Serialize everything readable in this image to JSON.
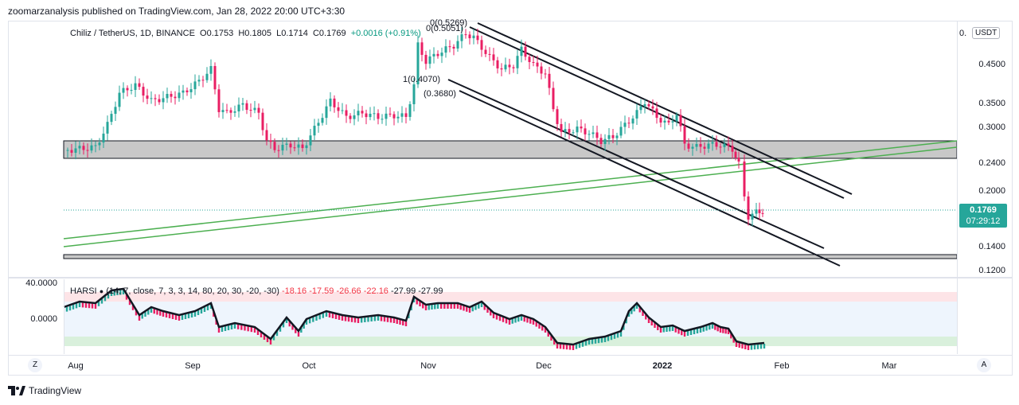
{
  "header": {
    "published": "zoomarzanalysis published on TradingView.com, Jan 28, 2022 20:00 UTC+3:30"
  },
  "legend": {
    "symbol": "Chiliz / TetherUS, 1D, BINANCE",
    "open": "O0.1753",
    "high": "H0.1805",
    "low": "L0.1714",
    "close": "C0.1769",
    "change": "+0.0016 (+0.91%)"
  },
  "osc_legend": {
    "name": "HARSI",
    "params": "(14, 7, close, 7, 3, 3, 14, 80, 20, 30, -20, -30)",
    "values": [
      "-18.16",
      "-17.59",
      "-26.66",
      "-22.16",
      "-27.99",
      "-27.99"
    ]
  },
  "price_axis": {
    "currency": "USDT",
    "ticks": [
      "0.",
      "0.4500",
      "0.3500",
      "0.3000",
      "0.2400",
      "0.2000",
      "0.1400",
      "0.1200"
    ]
  },
  "price_badge": {
    "price": "0.1769",
    "countdown": "07:29:12"
  },
  "osc_axis": {
    "ticks": [
      "40.0000",
      "0.0000"
    ]
  },
  "time_axis": {
    "ticks": [
      "Aug",
      "Sep",
      "Oct",
      "Nov",
      "Dec",
      "2022",
      "Feb",
      "Mar"
    ]
  },
  "fib_labels": [
    "0(0.5269)",
    "0(0.5051)",
    "1(0.4070)",
    "(0.3680)"
  ],
  "buttons": {
    "z": "Z",
    "a": "A"
  },
  "footer": {
    "brand": "TradingView"
  },
  "colors": {
    "up": "#26a69a",
    "down": "#e91e63",
    "zone": "#c8c8c8",
    "trend": "#4caf50",
    "osc_up": "#26a69a",
    "osc_down": "#e91e63"
  },
  "chart_data": {
    "type": "candlestick",
    "symbol": "CHZUSDT",
    "timeframe": "1D",
    "price_axis_ticks": [
      0.45,
      0.35,
      0.3,
      0.24,
      0.2,
      0.14,
      0.12
    ],
    "last": {
      "open": 0.1753,
      "high": 0.1805,
      "low": 0.1714,
      "close": 0.1769
    },
    "support_zone": [
      0.245,
      0.275
    ],
    "bottom_zone": [
      0.128,
      0.13
    ],
    "descending_channel": "downward parallel channel from Nov highs",
    "rising_trendlines": 2,
    "oscillator": {
      "name": "HARSI",
      "range": [
        -30,
        30
      ]
    }
  }
}
